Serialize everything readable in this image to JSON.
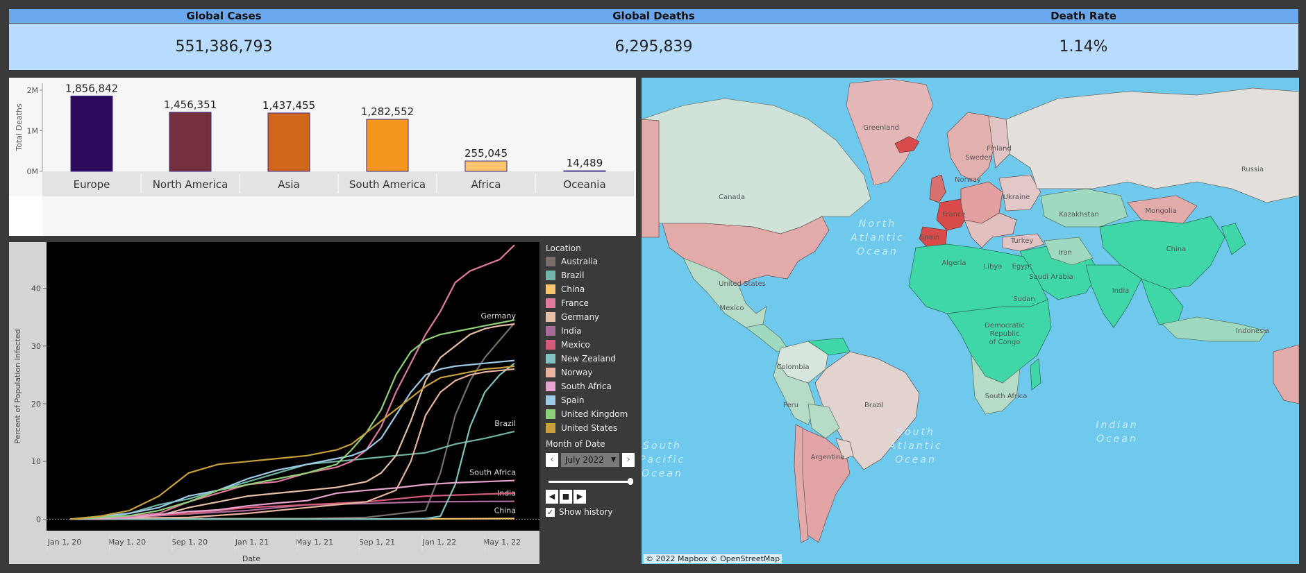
{
  "kpis": {
    "cases_label": "Global Cases",
    "deaths_label": "Global Deaths",
    "rate_label": "Death Rate",
    "cases_value": "551,386,793",
    "deaths_value": "6,295,839",
    "rate_value": "1.14%"
  },
  "colors": {
    "kpi_header": "#6aa8f0",
    "kpi_body": "#b8dcff",
    "ocean": "#6fc9ec",
    "high_rate": "#e07b7b",
    "low_rate": "#3fd6a8"
  },
  "chart_data": [
    {
      "type": "bar",
      "ylabel": "Total Deaths",
      "ylim": [
        0,
        2000000
      ],
      "yticks": [
        "0M",
        "1M",
        "2M"
      ],
      "categories": [
        "Europe",
        "North America",
        "Asia",
        "South America",
        "Africa",
        "Oceania"
      ],
      "values": [
        1856842,
        1456351,
        1437455,
        1282552,
        255045,
        14489
      ],
      "value_labels": [
        "1,856,842",
        "1,456,351",
        "1,437,455",
        "1,282,552",
        "255,045",
        "14,489"
      ],
      "colors": [
        "#2e0a5c",
        "#75303e",
        "#d0661a",
        "#f5961f",
        "#fbc56e",
        "#fde9b5"
      ]
    },
    {
      "type": "line",
      "xlabel": "Date",
      "ylabel": "Percent of Population Infected",
      "xticks": [
        "Jan 1, 20",
        "May 1, 20",
        "Sep 1, 20",
        "Jan 1, 21",
        "May 1, 21",
        "Sep 1, 21",
        "Jan 1, 22",
        "May 1, 22"
      ],
      "xlim": [
        0,
        30
      ],
      "ylim": [
        -2,
        48
      ],
      "yticks": [
        0,
        10,
        20,
        30,
        40
      ],
      "series": [
        {
          "name": "Australia",
          "color": "#7a6e6a",
          "x": [
            0,
            4,
            8,
            12,
            16,
            20,
            24,
            25,
            26,
            27,
            28,
            29,
            30
          ],
          "y": [
            0,
            0.1,
            0.1,
            0.1,
            0.1,
            0.3,
            1.5,
            8,
            18,
            24,
            28,
            31,
            34
          ],
          "end_label": ""
        },
        {
          "name": "Brazil",
          "color": "#6fb6a8",
          "x": [
            0,
            2,
            4,
            6,
            8,
            10,
            12,
            14,
            16,
            18,
            20,
            22,
            24,
            26,
            28,
            30
          ],
          "y": [
            0,
            0.2,
            1,
            2.5,
            3.5,
            5,
            6.5,
            8,
            9.5,
            10,
            10.5,
            11,
            11.5,
            13,
            14,
            15.2
          ],
          "end_label": "Brazil"
        },
        {
          "name": "China",
          "color": "#fbc56e",
          "x": [
            0,
            10,
            20,
            30
          ],
          "y": [
            0,
            0,
            0,
            0.1
          ],
          "end_label": "China"
        },
        {
          "name": "France",
          "color": "#e07ba0",
          "x": [
            0,
            2,
            4,
            6,
            8,
            10,
            12,
            14,
            16,
            18,
            19,
            20,
            21,
            22,
            23,
            24,
            25,
            26,
            27,
            28,
            29,
            30
          ],
          "y": [
            0,
            0.2,
            0.5,
            1,
            3,
            4.5,
            6,
            6.5,
            8,
            9,
            10,
            12,
            16,
            22,
            27,
            32,
            36,
            41,
            43,
            44,
            45,
            47.5
          ],
          "end_label": "France"
        },
        {
          "name": "Germany",
          "color": "#e8c0a8",
          "x": [
            0,
            2,
            4,
            6,
            8,
            10,
            12,
            14,
            16,
            18,
            19,
            20,
            21,
            22,
            23,
            24,
            25,
            26,
            27,
            28,
            29,
            30
          ],
          "y": [
            0,
            0.2,
            0.4,
            0.6,
            2,
            3,
            4,
            4.5,
            5,
            5.5,
            6,
            6.5,
            8,
            11,
            17,
            24,
            28,
            30,
            32,
            33,
            33.5,
            33.8
          ],
          "end_label": "Germany"
        },
        {
          "name": "India",
          "color": "#a86b9c",
          "x": [
            0,
            4,
            8,
            12,
            16,
            20,
            24,
            30
          ],
          "y": [
            0,
            0.3,
            0.9,
            1.5,
            2.5,
            2.7,
            3,
            3.1
          ],
          "end_label": "India"
        },
        {
          "name": "Mexico",
          "color": "#d45a7a",
          "x": [
            0,
            4,
            8,
            12,
            16,
            20,
            24,
            30
          ],
          "y": [
            0,
            0.3,
            1,
            2,
            2.5,
            3,
            4,
            4.5
          ],
          "end_label": ""
        },
        {
          "name": "New Zealand",
          "color": "#7fc4c0",
          "x": [
            0,
            10,
            20,
            24,
            25,
            26,
            27,
            28,
            29,
            30
          ],
          "y": [
            0,
            0,
            0,
            0.1,
            0.5,
            6,
            16,
            22,
            25,
            27
          ],
          "end_label": ""
        },
        {
          "name": "Norway",
          "color": "#e8b49c",
          "x": [
            0,
            4,
            8,
            12,
            16,
            20,
            22,
            23,
            24,
            25,
            26,
            27,
            28,
            30
          ],
          "y": [
            0,
            0.2,
            0.3,
            1,
            2,
            3,
            5,
            10,
            18,
            22,
            24,
            25,
            25.5,
            26
          ],
          "end_label": ""
        },
        {
          "name": "South Africa",
          "color": "#e8a4d0",
          "x": [
            0,
            4,
            6,
            8,
            10,
            12,
            14,
            16,
            18,
            20,
            22,
            24,
            26,
            28,
            30
          ],
          "y": [
            0,
            0.2,
            0.8,
            1.3,
            1.6,
            2.3,
            2.8,
            3.2,
            4.5,
            5,
            5.4,
            6,
            6.3,
            6.5,
            6.7
          ],
          "end_label": "South Africa"
        },
        {
          "name": "Spain",
          "color": "#9ecae8",
          "x": [
            0,
            2,
            4,
            6,
            8,
            10,
            12,
            14,
            16,
            18,
            19,
            20,
            21,
            22,
            23,
            24,
            25,
            26,
            28,
            30
          ],
          "y": [
            0,
            0.5,
            1,
            2,
            4,
            5,
            7,
            8.5,
            9.5,
            10.5,
            11,
            12,
            14,
            18,
            22,
            25,
            26,
            26.5,
            27,
            27.5
          ],
          "end_label": ""
        },
        {
          "name": "United Kingdom",
          "color": "#8fd178",
          "x": [
            0,
            2,
            4,
            6,
            8,
            10,
            12,
            14,
            16,
            18,
            19,
            20,
            21,
            22,
            23,
            24,
            25,
            26,
            27,
            28,
            29,
            30
          ],
          "y": [
            0,
            0.3,
            0.6,
            1.5,
            3,
            5,
            6,
            7,
            8,
            9.5,
            12,
            15,
            19,
            25,
            29,
            31,
            32,
            32.5,
            33,
            33.5,
            34,
            34.5
          ],
          "end_label": ""
        },
        {
          "name": "United States",
          "color": "#c9a03a",
          "x": [
            0,
            2,
            4,
            6,
            8,
            10,
            12,
            14,
            16,
            18,
            19,
            20,
            21,
            22,
            23,
            24,
            25,
            26,
            27,
            28,
            29,
            30
          ],
          "y": [
            0,
            0.5,
            1.5,
            4,
            8,
            9.5,
            10,
            10.5,
            11,
            12,
            13,
            15,
            17,
            19,
            21,
            23,
            24.5,
            25,
            25.5,
            26,
            26.2,
            26.5
          ],
          "end_label": ""
        }
      ]
    }
  ],
  "legend": {
    "title": "Location",
    "items": [
      "Australia",
      "Brazil",
      "China",
      "France",
      "Germany",
      "India",
      "Mexico",
      "New Zealand",
      "Norway",
      "South Africa",
      "Spain",
      "United Kingdom",
      "United States"
    ],
    "month_title": "Month of Date",
    "month_value": "July 2022",
    "show_history": "Show history"
  },
  "map": {
    "labels": [
      "Greenland",
      "Canada",
      "United States",
      "Mexico",
      "Colombia",
      "Peru",
      "Brazil",
      "Argentina",
      "Russia",
      "Kazakhstan",
      "Mongolia",
      "China",
      "India",
      "Iran",
      "Saudi Arabia",
      "Egypt",
      "Libya",
      "Algeria",
      "Sudan",
      "Democratic Republic of Congo",
      "South Africa",
      "Turkey",
      "Ukraine",
      "France",
      "Spain",
      "Finland",
      "Sweden",
      "Norway",
      "Indonesia"
    ],
    "oceans": [
      "North Atlantic Ocean",
      "South Atlantic Ocean",
      "Indian Ocean",
      "South Pacific Ocean"
    ],
    "attribution": "© 2022 Mapbox  © OpenStreetMap"
  }
}
